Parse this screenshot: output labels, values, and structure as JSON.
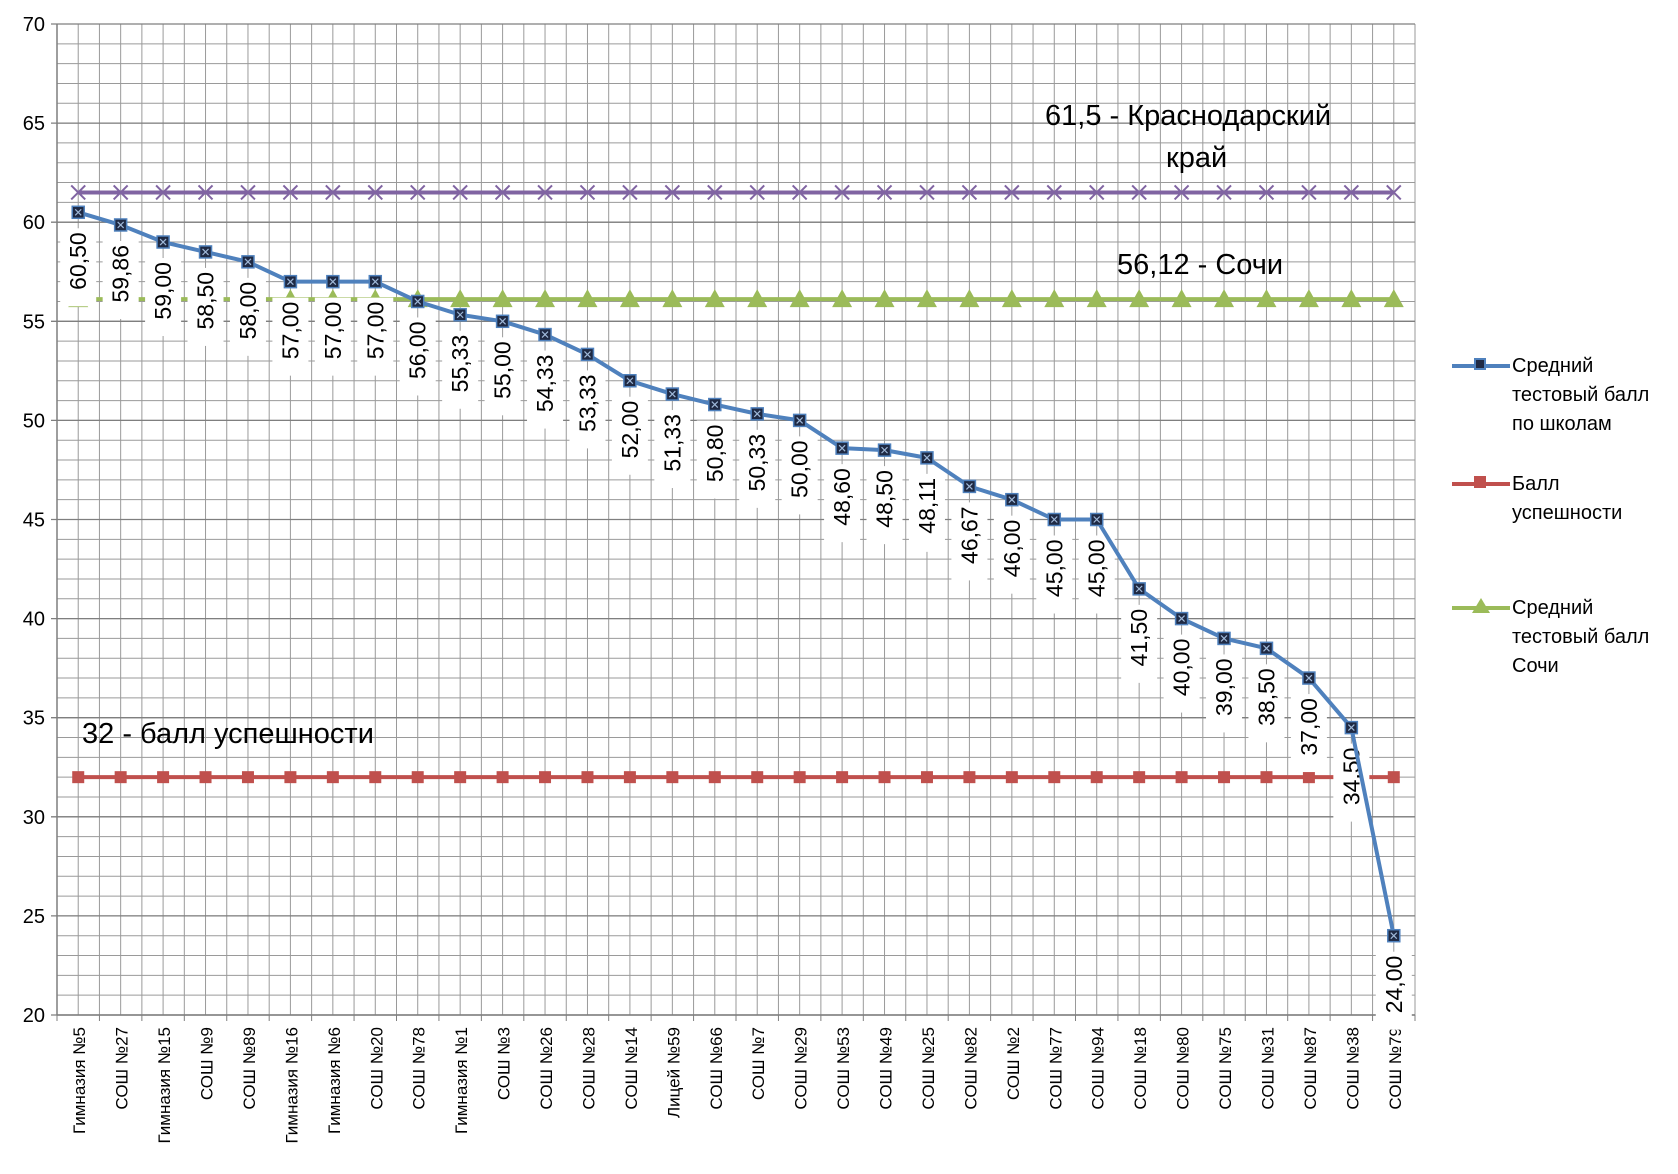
{
  "chart_data": {
    "type": "line",
    "title": "",
    "xlabel": "",
    "ylabel": "",
    "ylim": [
      20,
      70
    ],
    "yticks": [
      20,
      25,
      30,
      35,
      40,
      45,
      50,
      55,
      60,
      65,
      70
    ],
    "grid": true,
    "legend_position": "right",
    "categories": [
      "Гимназия №5",
      "СОШ №27",
      "Гимназия №15",
      "СОШ №9",
      "СОШ №89",
      "Гимназия №16",
      "Гимназия №6",
      "СОШ №20",
      "СОШ №78",
      "Гимназия №1",
      "СОШ №3",
      "СОШ №26",
      "СОШ №28",
      "СОШ №14",
      "Лицей №59",
      "СОШ №66",
      "СОШ №7",
      "СОШ №29",
      "СОШ №53",
      "СОШ №49",
      "СОШ №25",
      "СОШ №82",
      "СОШ №2",
      "СОШ №77",
      "СОШ №94",
      "СОШ №18",
      "СОШ №80",
      "СОШ №75",
      "СОШ №31",
      "СОШ №87",
      "СОШ №38",
      "СОШ №79"
    ],
    "series": [
      {
        "name": "Средний тестовый балл по школам",
        "color": "#4f81bd",
        "marker": "square-x",
        "values": [
          60.5,
          59.86,
          59.0,
          58.5,
          58.0,
          57.0,
          57.0,
          57.0,
          56.0,
          55.33,
          55.0,
          54.33,
          53.33,
          52.0,
          51.33,
          50.8,
          50.33,
          50.0,
          48.6,
          48.5,
          48.11,
          46.67,
          46.0,
          45.0,
          45.0,
          41.5,
          40.0,
          39.0,
          38.5,
          37.0,
          34.5,
          24.0
        ],
        "labels": [
          "60,50",
          "59,86",
          "59,00",
          "58,50",
          "58,00",
          "57,00",
          "57,00",
          "57,00",
          "56,00",
          "55,33",
          "55,00",
          "54,33",
          "53,33",
          "52,00",
          "51,33",
          "50,80",
          "50,33",
          "50,00",
          "48,60",
          "48,50",
          "48,11",
          "46,67",
          "46,00",
          "45,00",
          "45,00",
          "41,50",
          "40,00",
          "39,00",
          "38,50",
          "37,00",
          "34,50",
          "24,00"
        ]
      },
      {
        "name": "Балл успешности",
        "color": "#c0504d",
        "marker": "square",
        "constant": 32
      },
      {
        "name": "Средний тестовый балл Сочи",
        "color": "#9bbb59",
        "marker": "triangle",
        "constant": 56.12
      },
      {
        "name": "",
        "color": "#8064a2",
        "marker": "x",
        "constant": 61.5
      }
    ],
    "legend": [
      {
        "lines": [
          "Средний",
          "тестовый балл",
          "по школам"
        ],
        "color": "#4f81bd",
        "marker": "square-x"
      },
      {
        "lines": [
          "Балл",
          "успешности"
        ],
        "color": "#c0504d",
        "marker": "square"
      },
      {
        "lines": [
          "Средний",
          "тестовый балл",
          "Сочи"
        ],
        "color": "#9bbb59",
        "marker": "triangle"
      }
    ],
    "annotations": [
      {
        "lines": [
          "61,5 - Краснодарский",
          "край"
        ],
        "series": "krasnodar"
      },
      {
        "lines": [
          "56,12 - Сочи"
        ],
        "series": "sochi"
      },
      {
        "lines": [
          "32 - балл успешности"
        ],
        "series": "success"
      }
    ]
  }
}
